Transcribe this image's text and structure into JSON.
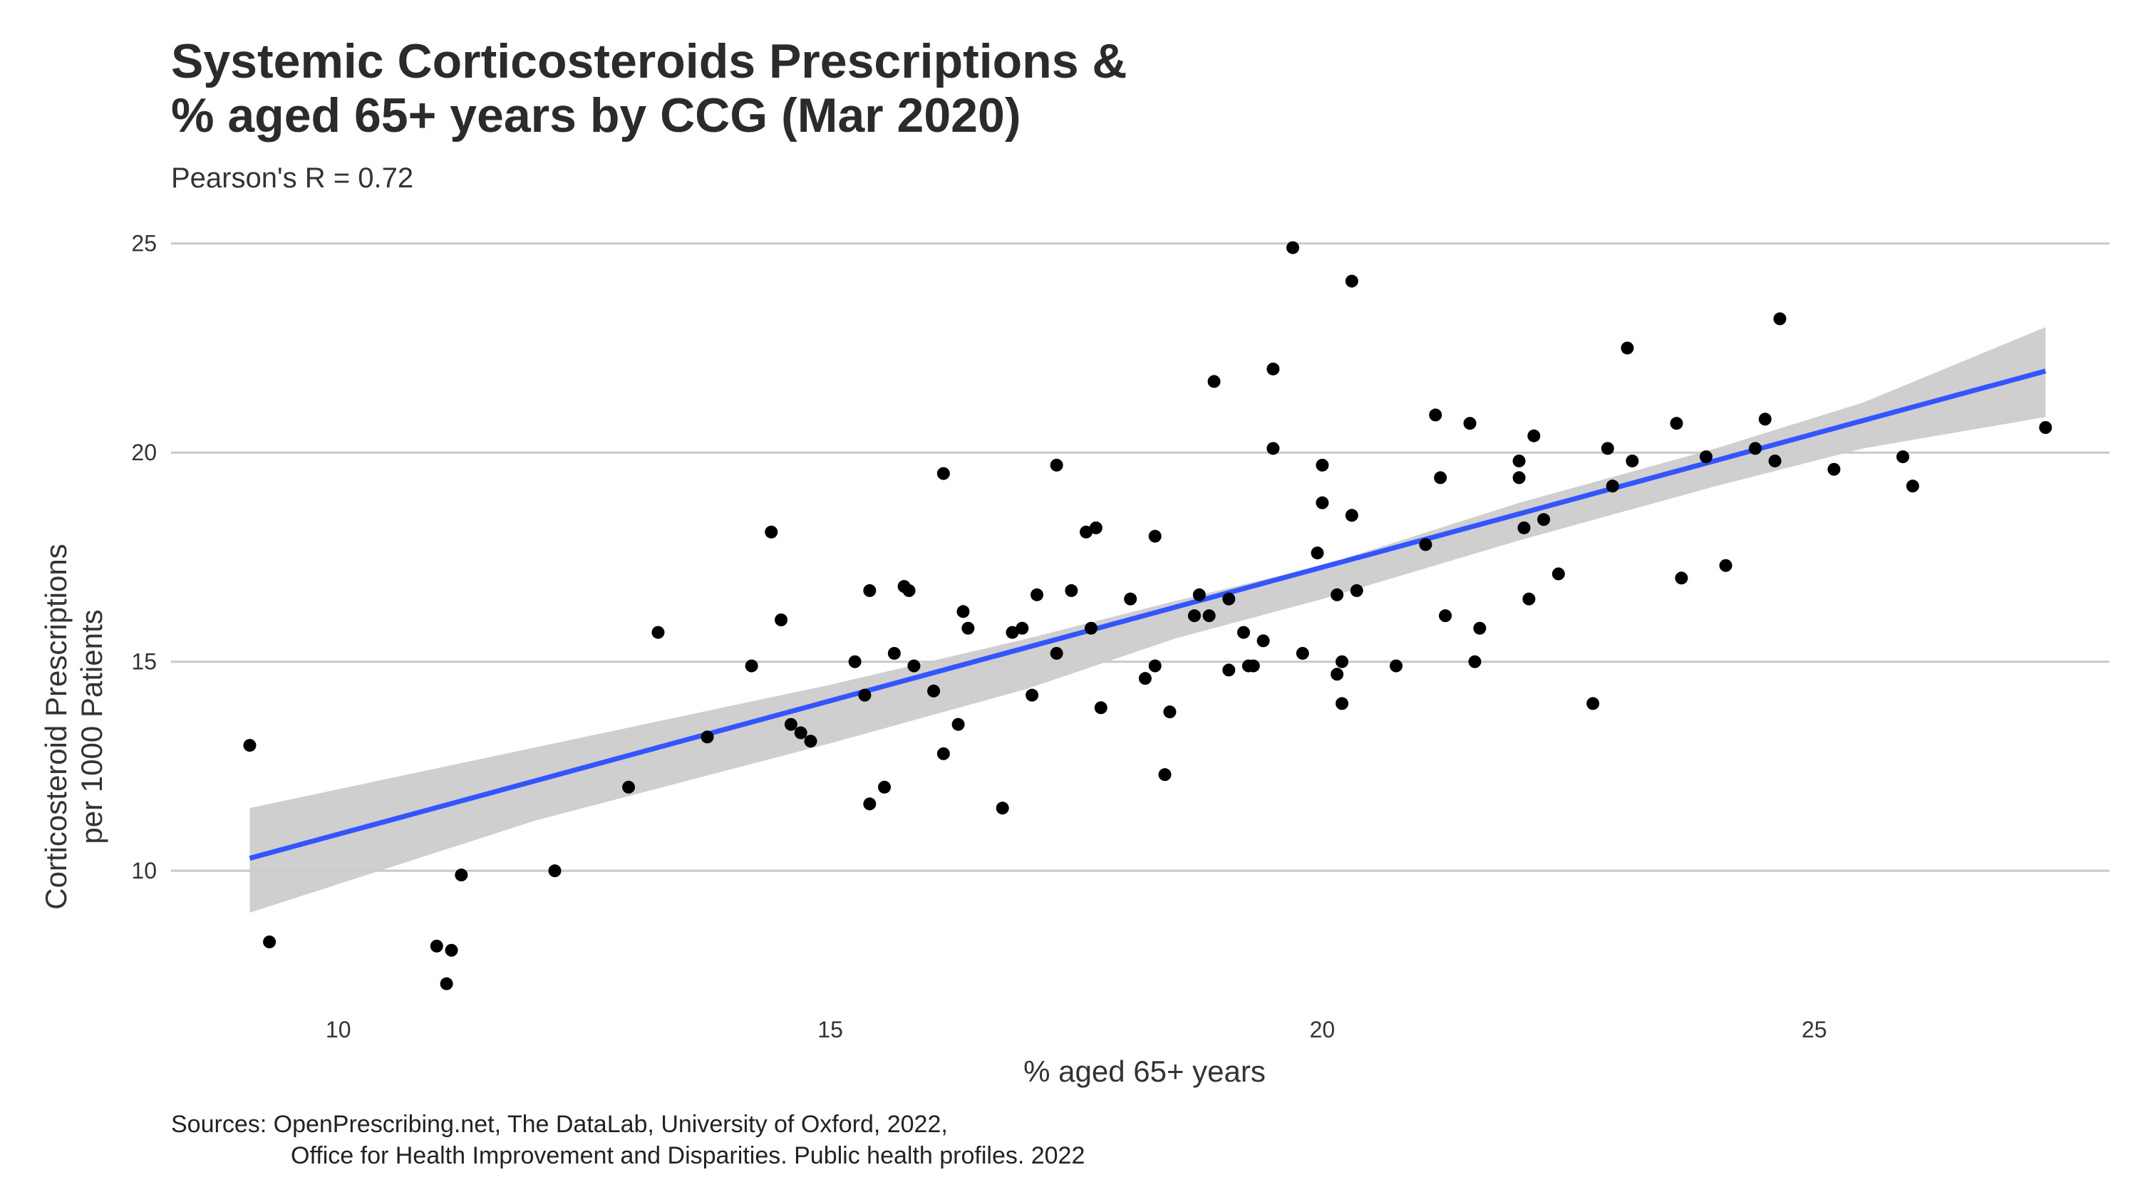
{
  "chart_data": {
    "type": "scatter",
    "title_lines": [
      "Systemic Corticosteroids Prescriptions &",
      "% aged 65+ years by CCG (Mar 2020)"
    ],
    "subtitle": "Pearson's R =  0.72",
    "xlabel": "% aged 65+ years",
    "ylabel_lines": [
      "Corticosteroid Prescriptions",
      "per 1000 Patients"
    ],
    "xlim": [
      8.3,
      28.0
    ],
    "ylim": [
      6.8,
      25.2
    ],
    "x_ticks": [
      10,
      15,
      20,
      25
    ],
    "y_ticks": [
      10,
      15,
      20,
      25
    ],
    "grid": "horizontal major",
    "points": [
      {
        "x": 9.1,
        "y": 13.0
      },
      {
        "x": 9.3,
        "y": 8.3
      },
      {
        "x": 11.0,
        "y": 8.2
      },
      {
        "x": 11.1,
        "y": 7.3
      },
      {
        "x": 11.15,
        "y": 8.1
      },
      {
        "x": 11.25,
        "y": 9.9
      },
      {
        "x": 12.2,
        "y": 10.0
      },
      {
        "x": 12.95,
        "y": 12.0
      },
      {
        "x": 13.25,
        "y": 15.7
      },
      {
        "x": 13.75,
        "y": 13.2
      },
      {
        "x": 14.2,
        "y": 14.9
      },
      {
        "x": 14.4,
        "y": 18.1
      },
      {
        "x": 14.5,
        "y": 16.0
      },
      {
        "x": 14.6,
        "y": 13.5
      },
      {
        "x": 14.7,
        "y": 13.3
      },
      {
        "x": 14.8,
        "y": 13.1
      },
      {
        "x": 15.25,
        "y": 15.0
      },
      {
        "x": 15.35,
        "y": 14.2
      },
      {
        "x": 15.4,
        "y": 16.7
      },
      {
        "x": 15.4,
        "y": 11.6
      },
      {
        "x": 15.55,
        "y": 12.0
      },
      {
        "x": 15.65,
        "y": 15.2
      },
      {
        "x": 15.75,
        "y": 16.8
      },
      {
        "x": 15.8,
        "y": 16.7
      },
      {
        "x": 15.85,
        "y": 14.9
      },
      {
        "x": 16.05,
        "y": 14.3
      },
      {
        "x": 16.15,
        "y": 19.5
      },
      {
        "x": 16.15,
        "y": 12.8
      },
      {
        "x": 16.3,
        "y": 13.5
      },
      {
        "x": 16.35,
        "y": 16.2
      },
      {
        "x": 16.4,
        "y": 15.8
      },
      {
        "x": 16.75,
        "y": 11.5
      },
      {
        "x": 16.85,
        "y": 15.7
      },
      {
        "x": 16.95,
        "y": 15.8
      },
      {
        "x": 17.05,
        "y": 14.2
      },
      {
        "x": 17.1,
        "y": 16.6
      },
      {
        "x": 17.3,
        "y": 15.2
      },
      {
        "x": 17.3,
        "y": 19.7
      },
      {
        "x": 17.45,
        "y": 16.7
      },
      {
        "x": 17.6,
        "y": 18.1
      },
      {
        "x": 17.65,
        "y": 15.8
      },
      {
        "x": 17.7,
        "y": 18.2
      },
      {
        "x": 17.75,
        "y": 13.9
      },
      {
        "x": 18.05,
        "y": 16.5
      },
      {
        "x": 18.2,
        "y": 14.6
      },
      {
        "x": 18.3,
        "y": 18.0
      },
      {
        "x": 18.3,
        "y": 14.9
      },
      {
        "x": 18.4,
        "y": 12.3
      },
      {
        "x": 18.45,
        "y": 13.8
      },
      {
        "x": 18.7,
        "y": 16.1
      },
      {
        "x": 18.75,
        "y": 16.6
      },
      {
        "x": 18.85,
        "y": 16.1
      },
      {
        "x": 18.9,
        "y": 21.7
      },
      {
        "x": 19.05,
        "y": 16.5
      },
      {
        "x": 19.05,
        "y": 14.8
      },
      {
        "x": 19.2,
        "y": 15.7
      },
      {
        "x": 19.25,
        "y": 14.9
      },
      {
        "x": 19.3,
        "y": 14.9
      },
      {
        "x": 19.4,
        "y": 15.5
      },
      {
        "x": 19.5,
        "y": 20.1
      },
      {
        "x": 19.5,
        "y": 22.0
      },
      {
        "x": 19.7,
        "y": 24.9
      },
      {
        "x": 19.8,
        "y": 15.2
      },
      {
        "x": 19.95,
        "y": 17.6
      },
      {
        "x": 20.0,
        "y": 19.7
      },
      {
        "x": 20.0,
        "y": 18.8
      },
      {
        "x": 20.15,
        "y": 16.6
      },
      {
        "x": 20.15,
        "y": 14.7
      },
      {
        "x": 20.2,
        "y": 15.0
      },
      {
        "x": 20.2,
        "y": 14.0
      },
      {
        "x": 20.3,
        "y": 18.5
      },
      {
        "x": 20.3,
        "y": 24.1
      },
      {
        "x": 20.35,
        "y": 16.7
      },
      {
        "x": 20.75,
        "y": 14.9
      },
      {
        "x": 21.05,
        "y": 17.8
      },
      {
        "x": 21.15,
        "y": 20.9
      },
      {
        "x": 21.2,
        "y": 19.4
      },
      {
        "x": 21.25,
        "y": 16.1
      },
      {
        "x": 21.5,
        "y": 20.7
      },
      {
        "x": 21.55,
        "y": 15.0
      },
      {
        "x": 21.6,
        "y": 15.8
      },
      {
        "x": 22.0,
        "y": 19.8
      },
      {
        "x": 22.0,
        "y": 19.4
      },
      {
        "x": 22.05,
        "y": 18.2
      },
      {
        "x": 22.1,
        "y": 16.5
      },
      {
        "x": 22.15,
        "y": 20.4
      },
      {
        "x": 22.25,
        "y": 18.4
      },
      {
        "x": 22.4,
        "y": 17.1
      },
      {
        "x": 22.75,
        "y": 14.0
      },
      {
        "x": 22.9,
        "y": 20.1
      },
      {
        "x": 22.95,
        "y": 19.2
      },
      {
        "x": 23.1,
        "y": 22.5
      },
      {
        "x": 23.15,
        "y": 19.8
      },
      {
        "x": 23.6,
        "y": 20.7
      },
      {
        "x": 23.65,
        "y": 17.0
      },
      {
        "x": 23.9,
        "y": 19.9
      },
      {
        "x": 24.1,
        "y": 17.3
      },
      {
        "x": 24.4,
        "y": 20.1
      },
      {
        "x": 24.5,
        "y": 20.8
      },
      {
        "x": 24.6,
        "y": 19.8
      },
      {
        "x": 24.65,
        "y": 23.2
      },
      {
        "x": 25.2,
        "y": 19.6
      },
      {
        "x": 25.9,
        "y": 19.9
      },
      {
        "x": 26.0,
        "y": 19.2
      },
      {
        "x": 27.35,
        "y": 20.6
      }
    ],
    "trend_line": {
      "x": [
        9.1,
        27.35
      ],
      "y": [
        10.3,
        21.95
      ],
      "color": "#3355ff"
    },
    "confidence_band": {
      "x": [
        9.1,
        12.0,
        15.0,
        17.0,
        18.5,
        20.0,
        22.0,
        24.0,
        25.5,
        27.35
      ],
      "upper": [
        11.5,
        12.95,
        14.45,
        15.55,
        16.45,
        17.3,
        18.8,
        20.1,
        21.2,
        23.0
      ],
      "lower": [
        9.0,
        11.2,
        13.05,
        14.35,
        15.55,
        16.5,
        17.9,
        19.2,
        20.1,
        20.85
      ],
      "color": "#cccccc"
    },
    "point_color": "#000000",
    "grid_color": "#c8c8c8"
  },
  "caption": {
    "line1": "Sources: OpenPrescribing.net, The DataLab, University of Oxford, 2022,",
    "line2": "Office for Health Improvement and Disparities. Public health profiles. 2022"
  }
}
